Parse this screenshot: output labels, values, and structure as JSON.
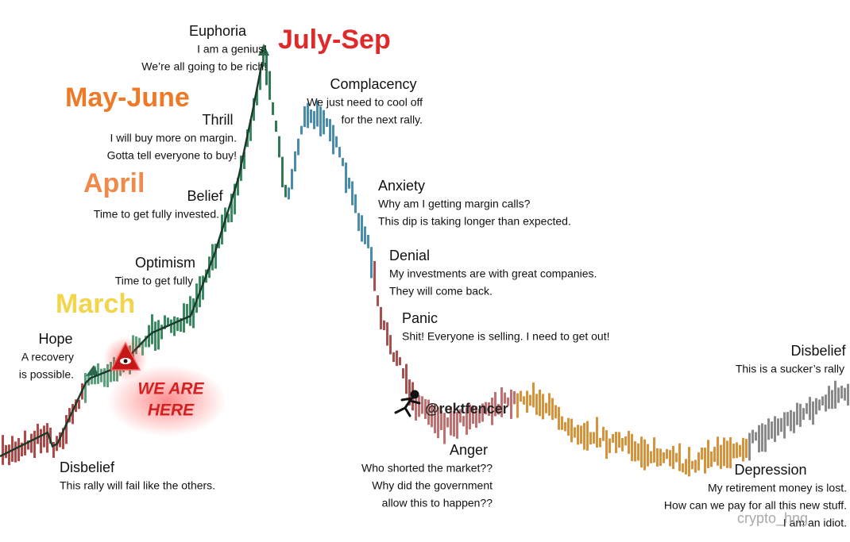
{
  "months": [
    "March",
    "April",
    "May-June",
    "July-Sep"
  ],
  "stages": [
    {
      "title": "Disbelief",
      "lines": [
        "This rally will fail like the others."
      ]
    },
    {
      "title": "Hope",
      "lines": [
        "A recovery",
        "is possible."
      ]
    },
    {
      "title": "Optimism",
      "lines": [
        "Time to get fully"
      ]
    },
    {
      "title": "Belief",
      "lines": [
        "Time to get fully invested."
      ]
    },
    {
      "title": "Thrill",
      "lines": [
        "I will buy more on margin.",
        "Gotta tell everyone to buy!"
      ]
    },
    {
      "title": "Euphoria",
      "lines": [
        "I am a genius!",
        "We’re all going to be rich!"
      ]
    },
    {
      "title": "Complacency",
      "lines": [
        "We just need to cool off",
        "for the next rally."
      ]
    },
    {
      "title": "Anxiety",
      "lines": [
        "Why am I getting margin calls?",
        "This dip is taking longer than expected."
      ]
    },
    {
      "title": "Denial",
      "lines": [
        "My investments are with great companies.",
        "They will come back."
      ]
    },
    {
      "title": "Panic",
      "lines": [
        "Shit! Everyone is selling. I need to get out!"
      ]
    },
    {
      "title": "Anger",
      "lines": [
        "Who shorted the market??",
        "Why did the government",
        "allow this to happen??"
      ]
    },
    {
      "title": "Depression",
      "lines": [
        "My retirement money is lost.",
        "How can we pay for all this new stuff.",
        "I am an idiot."
      ]
    },
    {
      "title": "Disbelief",
      "lines": [
        "This is a sucker’s rally"
      ]
    }
  ],
  "marker": [
    "WE ARE",
    "HERE"
  ],
  "watermarks": [
    "@rektfencer",
    "crypto_hng"
  ]
}
